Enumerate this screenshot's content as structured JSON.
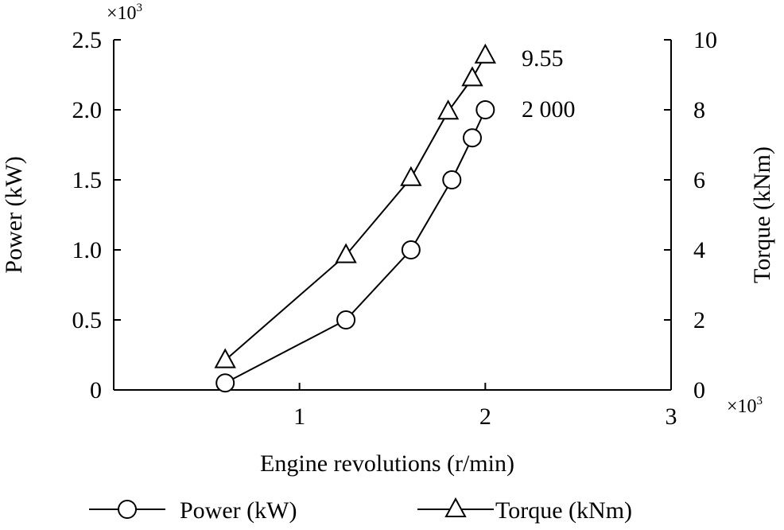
{
  "chart_data": {
    "type": "line",
    "x_multiplier": "×10",
    "x_multiplier_exp": "3",
    "y_left_multiplier": "×10",
    "y_left_multiplier_exp": "3",
    "xlabel": "Engine revolutions (r/min)",
    "ylabel_left": "Power (kW)",
    "ylabel_right": "Torque (kNm)",
    "xlim": [
      0,
      3
    ],
    "ylim_left": [
      0,
      2.5
    ],
    "ylim_right": [
      0,
      10
    ],
    "x_ticks": [
      1,
      2,
      3
    ],
    "x_tick_labels": [
      "1",
      "2",
      "3"
    ],
    "y_left_ticks": [
      0,
      0.5,
      1.0,
      1.5,
      2.0,
      2.5
    ],
    "y_left_tick_labels": [
      "0",
      "0.5",
      "1.0",
      "1.5",
      "2.0",
      "2.5"
    ],
    "y_right_ticks": [
      0,
      2,
      4,
      6,
      8,
      10
    ],
    "y_right_tick_labels": [
      "0",
      "2",
      "4",
      "6",
      "8",
      "10"
    ],
    "series": [
      {
        "name": "Power (kW)",
        "axis": "left",
        "marker": "circle",
        "x": [
          0.6,
          1.25,
          1.6,
          1.82,
          1.93,
          2.0
        ],
        "y": [
          0.05,
          0.5,
          1.0,
          1.5,
          1.8,
          2.0
        ]
      },
      {
        "name": "Torque (kNm)",
        "axis": "right",
        "marker": "triangle",
        "x": [
          0.6,
          1.25,
          1.6,
          1.8,
          1.93,
          2.0
        ],
        "y": [
          0.85,
          3.85,
          6.05,
          7.95,
          8.9,
          9.55
        ]
      }
    ],
    "annotations": [
      {
        "text": "9.55",
        "series": "Torque (kNm)",
        "point_index": 5
      },
      {
        "text": "2 000",
        "series": "Power (kW)",
        "point_index": 5
      }
    ],
    "legend": {
      "position": "bottom",
      "entries": [
        "Power (kW)",
        "Torque (kNm)"
      ]
    }
  }
}
